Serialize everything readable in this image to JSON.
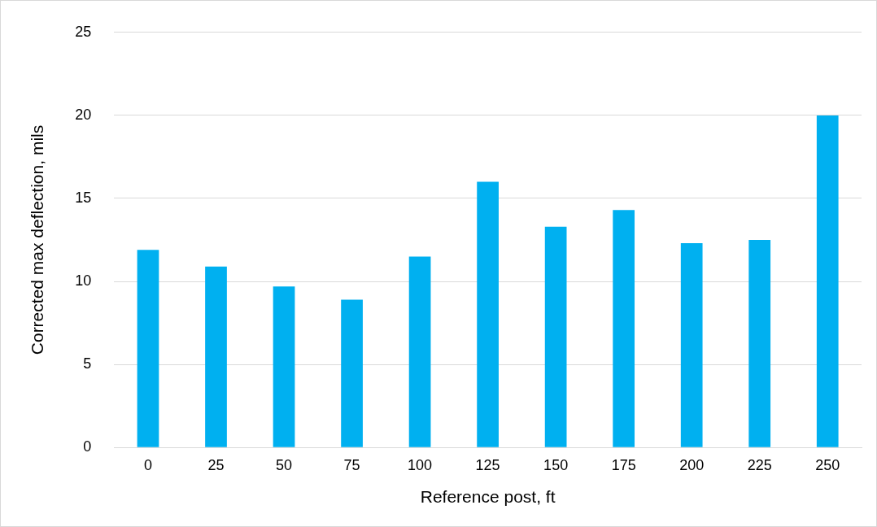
{
  "chart_data": {
    "type": "bar",
    "xlabel": "Reference post, ft",
    "ylabel": "Corrected max deflection, mils",
    "categories": [
      "0",
      "25",
      "50",
      "75",
      "100",
      "125",
      "150",
      "175",
      "200",
      "225",
      "250"
    ],
    "values": [
      11.9,
      10.9,
      9.7,
      8.9,
      11.5,
      16.0,
      13.3,
      14.3,
      12.3,
      12.5,
      20.0
    ],
    "color": "#00b0f0",
    "ylim": [
      0,
      25
    ],
    "yticks": [
      0,
      5,
      10,
      15,
      20,
      25
    ],
    "grid": "y",
    "legend": false
  }
}
